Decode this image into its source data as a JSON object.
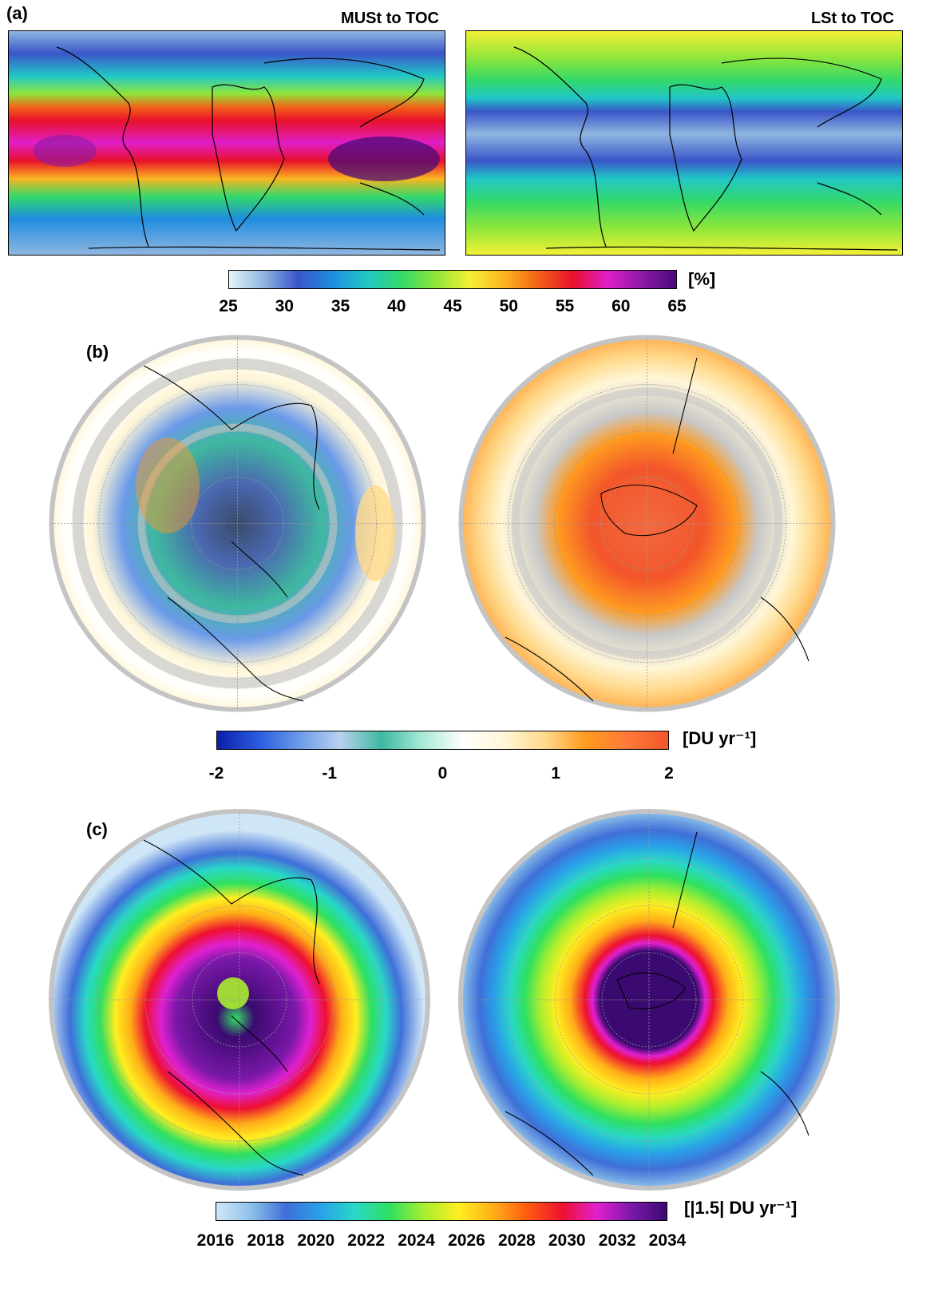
{
  "panel_a": {
    "label": "(a)",
    "left_title": "MUSt to TOC",
    "right_title": "LSt to TOC",
    "colorbar": {
      "unit": "[%]",
      "ticks": [
        "25",
        "30",
        "35",
        "40",
        "45",
        "50",
        "55",
        "60",
        "65"
      ],
      "colors": [
        "#e6f4fb",
        "#8fb6e0",
        "#3a55c9",
        "#1f8de0",
        "#21c7c6",
        "#33d96a",
        "#8ee63a",
        "#f4f036",
        "#fbb520",
        "#f26218",
        "#e8112a",
        "#e01ec8",
        "#8b1aa8",
        "#4a0a78"
      ]
    }
  },
  "panel_b": {
    "label": "(b)",
    "colorbar": {
      "unit": "[DU yr⁻¹]",
      "ticks": [
        "-2",
        "-1",
        "0",
        "1",
        "2"
      ],
      "colors": [
        "#0a1fa8",
        "#2a5be0",
        "#6a9ae8",
        "#b8d2ef",
        "#3fb8a0",
        "#a6ead6",
        "#ffffff",
        "#fff6d8",
        "#ffd98a",
        "#ff9a20",
        "#ff7a3a",
        "#f2562a"
      ]
    }
  },
  "panel_c": {
    "label": "(c)",
    "colorbar": {
      "unit": "[|1.5| DU yr⁻¹]",
      "ticks": [
        "2016",
        "2018",
        "2020",
        "2022",
        "2024",
        "2026",
        "2028",
        "2030",
        "2032",
        "2034"
      ],
      "colors": [
        "#cfe6f7",
        "#8fc2ea",
        "#3f6fd8",
        "#2aa0e8",
        "#28d8c8",
        "#2fe060",
        "#a8ee30",
        "#ffee20",
        "#ffae18",
        "#ff5a10",
        "#ee1030",
        "#e020d0",
        "#7a18a8",
        "#3a0a70"
      ]
    }
  },
  "colors": {
    "land_outline": "#000000",
    "missing_data": "#c8c8c8",
    "graticule": "#9a9a9a",
    "disc_rim": "#c4c4c4"
  }
}
